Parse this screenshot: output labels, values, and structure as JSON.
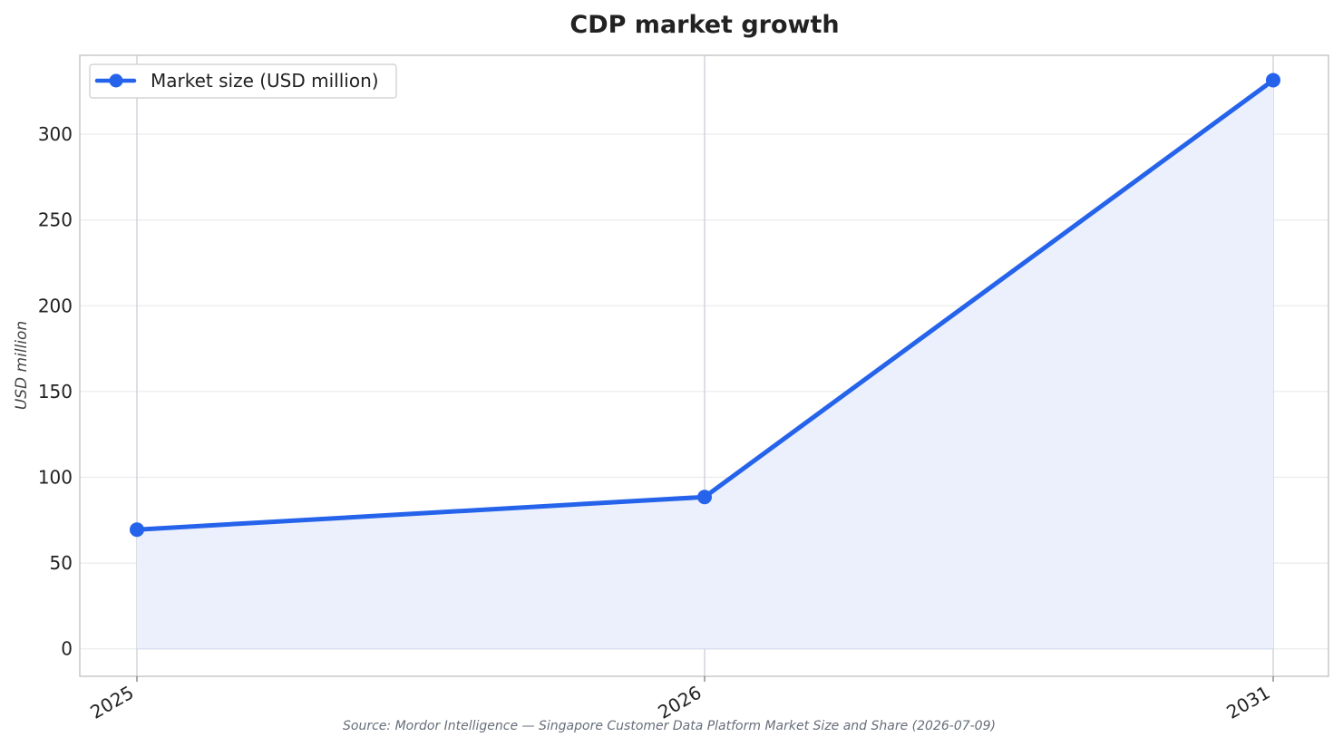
{
  "chart_data": {
    "type": "line",
    "title": "CDP market growth",
    "xlabel": "",
    "ylabel": "USD million",
    "x": [
      "2025",
      "2026",
      "2031"
    ],
    "series": [
      {
        "name": "Market size (USD million)",
        "values": [
          69.5,
          88.5,
          331.5
        ]
      }
    ],
    "ylim": [
      -16,
      346
    ],
    "yticks": [
      0,
      50,
      100,
      150,
      200,
      250,
      300
    ],
    "ytick_labels": [
      "0",
      "50",
      "100",
      "150",
      "200",
      "250",
      "300"
    ],
    "grid": true,
    "area_fill": true,
    "legend_position": "top-left",
    "source": "Source: Mordor Intelligence — Singapore Customer Data Platform Market Size and Share (2026-07-09)"
  },
  "colors": {
    "line": "#2563eb",
    "area_fill": "#ebf0fc",
    "grid": "#ebebeb",
    "frame": "#c8c8c8",
    "vertical_grid": "#c8cad2",
    "text": "#222222",
    "source_text": "#666e7a"
  }
}
